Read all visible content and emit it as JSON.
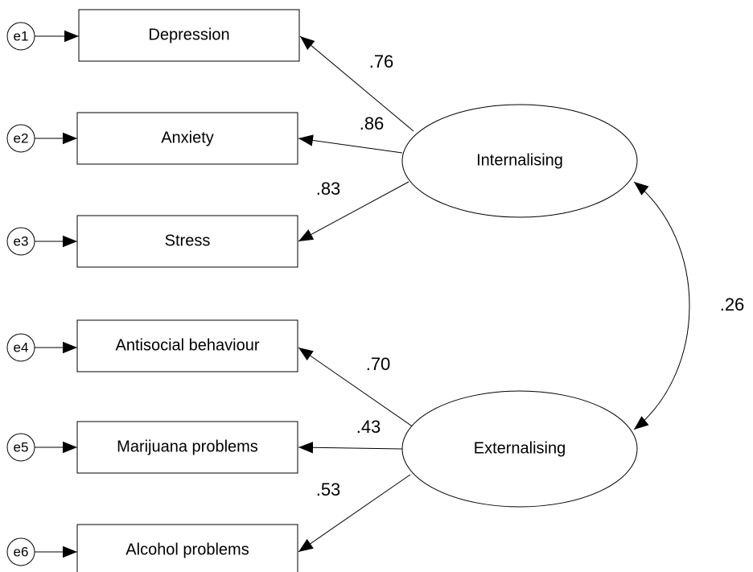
{
  "errors": [
    "e1",
    "e2",
    "e3",
    "e4",
    "e5",
    "e6"
  ],
  "indicators": [
    "Depression",
    "Anxiety",
    "Stress",
    "Antisocial behaviour",
    "Marijuana problems",
    "Alcohol problems"
  ],
  "factors": [
    "Internalising",
    "Externalising"
  ],
  "loadings": [
    ".76",
    ".86",
    ".83",
    ".70",
    ".43",
    ".53"
  ],
  "correlation": ".26"
}
